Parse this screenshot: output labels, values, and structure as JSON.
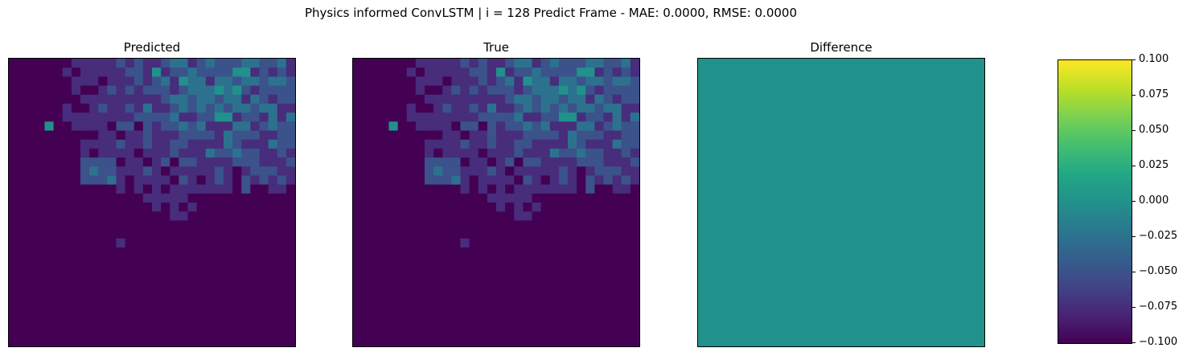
{
  "figure": {
    "suptitle": "Physics informed ConvLSTM | i = 128 Predict Frame - MAE: 0.0000, RMSE: 0.0000"
  },
  "chart_data": [
    {
      "type": "heatmap",
      "title": "Predicted",
      "grid": false,
      "axes_ticks": "hidden",
      "colormap": "viridis",
      "grid_size": [
        32,
        32
      ]
    },
    {
      "type": "heatmap",
      "title": "True",
      "grid": false,
      "axes_ticks": "hidden",
      "colormap": "viridis",
      "grid_size": [
        32,
        32
      ]
    },
    {
      "type": "heatmap",
      "title": "Difference",
      "grid": false,
      "axes_ticks": "hidden",
      "colormap": "viridis",
      "uniform_value": 0.0,
      "uniform_color": "#21918c"
    }
  ],
  "colorbar": {
    "colormap": "viridis",
    "range": [
      -0.1,
      0.1
    ],
    "ticks": [
      "0.100",
      "0.075",
      "0.050",
      "0.025",
      "0.000",
      "−0.025",
      "−0.050",
      "−0.075",
      "−0.100"
    ],
    "tick_values": [
      0.1,
      0.075,
      0.05,
      0.025,
      0.0,
      -0.025,
      -0.05,
      -0.075,
      -0.1
    ]
  }
}
